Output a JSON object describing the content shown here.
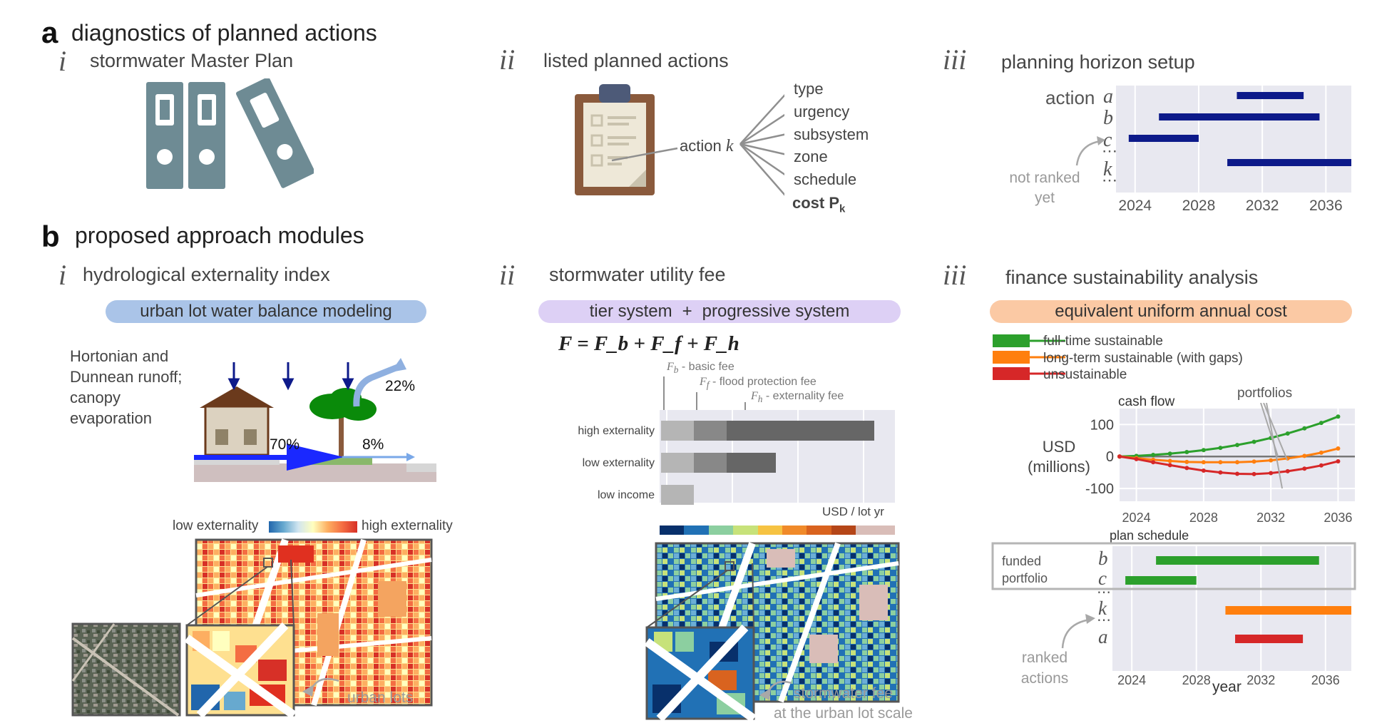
{
  "panel_a": {
    "letter": "a",
    "title": "diagnostics of planned actions",
    "i": {
      "numeral": "i",
      "title": "stormwater Master Plan"
    },
    "ii": {
      "numeral": "ii",
      "title": "listed planned actions",
      "action_label": "action",
      "action_var": "k",
      "attributes": [
        "type",
        "urgency",
        "subsystem",
        "zone",
        "schedule"
      ],
      "cost_label": "cost P",
      "cost_sub": "k"
    },
    "iii": {
      "numeral": "iii",
      "title": "planning horizon setup",
      "action_word": "action",
      "rows": [
        "a",
        "b",
        "c",
        "k"
      ],
      "dots": "⋯",
      "note_line1": "not ranked",
      "note_line2": "yet",
      "x_ticks": [
        "2024",
        "2028",
        "2032",
        "2036"
      ],
      "bar_color": "#0d1a8a",
      "bars": [
        {
          "row": "a",
          "start": 2030.4,
          "end": 2034.6
        },
        {
          "row": "b",
          "start": 2025.5,
          "end": 2035.6
        },
        {
          "row": "c",
          "start": 2023.6,
          "end": 2028.0
        },
        {
          "row": "k",
          "start": 2029.8,
          "end": 2037.6
        }
      ],
      "xlim": [
        2022.8,
        2037.6
      ]
    }
  },
  "panel_b": {
    "letter": "b",
    "title": "proposed approach modules",
    "i": {
      "numeral": "i",
      "title": "hydrological externality index",
      "pill": "urban lot water balance modeling",
      "runoff_text": [
        "Hortonian and",
        "Dunnean runoff;",
        "canopy",
        "evaporation"
      ],
      "pct_evap": "22%",
      "pct_runoff": "70%",
      "pct_infil": "8%",
      "cbar_low": "low externality",
      "cbar_high": "high externality",
      "lots_label": "urban lots"
    },
    "ii": {
      "numeral": "ii",
      "title": "stormwater utility fee",
      "pill_left": "tier system",
      "pill_plus": "+",
      "pill_right": "progressive system",
      "equation": "F = F_b + F_f + F_h",
      "fee_labels": [
        "- basic fee",
        "- flood protection fee",
        "- externality fee"
      ],
      "categories": [
        "high externality",
        "low externality",
        "low income"
      ],
      "unit": "USD / lot yr",
      "fee_caption_1": "stormwater fee",
      "fee_caption_2": "at the urban lot scale"
    },
    "iii": {
      "numeral": "iii",
      "title": "finance sustainability analysis",
      "pill": "equivalent uniform annual cost",
      "legend": [
        {
          "label": "full-time sustainable",
          "color": "#2ca02c"
        },
        {
          "label": "long-term sustainable (with gaps)",
          "color": "#ff7f0e"
        },
        {
          "label": "unsustainable",
          "color": "#d62728"
        }
      ],
      "cash_title": "cash flow",
      "portfolios_label": "portfolios",
      "y_label_1": "USD",
      "y_label_2": "(millions)",
      "y_ticks": [
        "100",
        "0",
        "-100"
      ],
      "x_ticks": [
        "2024",
        "2028",
        "2032",
        "2036"
      ],
      "schedule_title": "plan schedule",
      "funded_1": "funded",
      "funded_2": "portfolio",
      "ranked_1": "ranked",
      "ranked_2": "actions",
      "rows": [
        "b",
        "c",
        "k",
        "a"
      ],
      "dots": "⋯",
      "xlabel": "year"
    }
  },
  "chart_data": [
    {
      "type": "bar",
      "orientation": "horizontal",
      "title": "",
      "categories": [
        "high externality",
        "low externality",
        "low income"
      ],
      "series": [
        {
          "name": "basic fee",
          "values": [
            1,
            1,
            1
          ]
        },
        {
          "name": "flood protection fee",
          "values": [
            1,
            1,
            0
          ]
        },
        {
          "name": "externality fee",
          "values": [
            4.5,
            1.5,
            0
          ]
        }
      ],
      "xlabel": "USD / lot yr",
      "grid": true
    },
    {
      "type": "line",
      "title": "cash flow",
      "ylabel": "USD (millions)",
      "ylim": [
        -140,
        150
      ],
      "xlim": [
        2023,
        2037
      ],
      "x": [
        2023,
        2024,
        2025,
        2026,
        2027,
        2028,
        2029,
        2030,
        2031,
        2032,
        2033,
        2034,
        2035,
        2036
      ],
      "series": [
        {
          "name": "full-time sustainable",
          "values": [
            0,
            2,
            5,
            9,
            14,
            20,
            27,
            36,
            46,
            58,
            72,
            88,
            105,
            125
          ]
        },
        {
          "name": "long-term sustainable (with gaps)",
          "values": [
            0,
            -5,
            -10,
            -14,
            -17,
            -18,
            -18,
            -18,
            -16,
            -12,
            -6,
            2,
            12,
            25
          ]
        },
        {
          "name": "unsustainable",
          "values": [
            0,
            -8,
            -18,
            -27,
            -36,
            -44,
            -50,
            -54,
            -55,
            -52,
            -46,
            -38,
            -28,
            -15
          ]
        }
      ],
      "grid": true
    },
    {
      "type": "bar",
      "orientation": "gantt",
      "title": "plan schedule",
      "xlabel": "year",
      "xlim": [
        2022.8,
        2037.6
      ],
      "bars": [
        {
          "row": "b",
          "start": 2025.5,
          "end": 2035.6,
          "color": "#2ca02c"
        },
        {
          "row": "c",
          "start": 2023.6,
          "end": 2028.0,
          "color": "#2ca02c"
        },
        {
          "row": "k",
          "start": 2029.8,
          "end": 2037.6,
          "color": "#ff7f0e"
        },
        {
          "row": "a",
          "start": 2030.4,
          "end": 2034.6,
          "color": "#d62728"
        }
      ]
    }
  ]
}
